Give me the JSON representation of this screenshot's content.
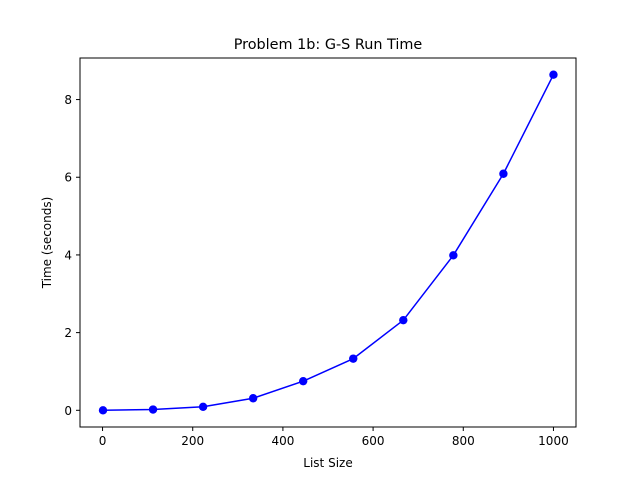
{
  "chart_data": {
    "type": "line",
    "title": "Problem 1b: G-S Run Time",
    "xlabel": "List Size",
    "ylabel": "Time (seconds)",
    "xlim": [
      -50,
      1050
    ],
    "ylim": [
      -0.43,
      9.07
    ],
    "xticks": [
      0,
      200,
      400,
      600,
      800,
      1000
    ],
    "yticks": [
      0,
      2,
      4,
      6,
      8
    ],
    "grid": false,
    "marker": "circle",
    "series": [
      {
        "color": "#0000ff",
        "x": [
          1,
          112,
          223,
          334,
          445,
          556,
          667,
          778,
          889,
          1000
        ],
        "y": [
          0.0,
          0.02,
          0.09,
          0.31,
          0.75,
          1.33,
          2.32,
          3.99,
          6.09,
          8.64
        ]
      }
    ]
  }
}
